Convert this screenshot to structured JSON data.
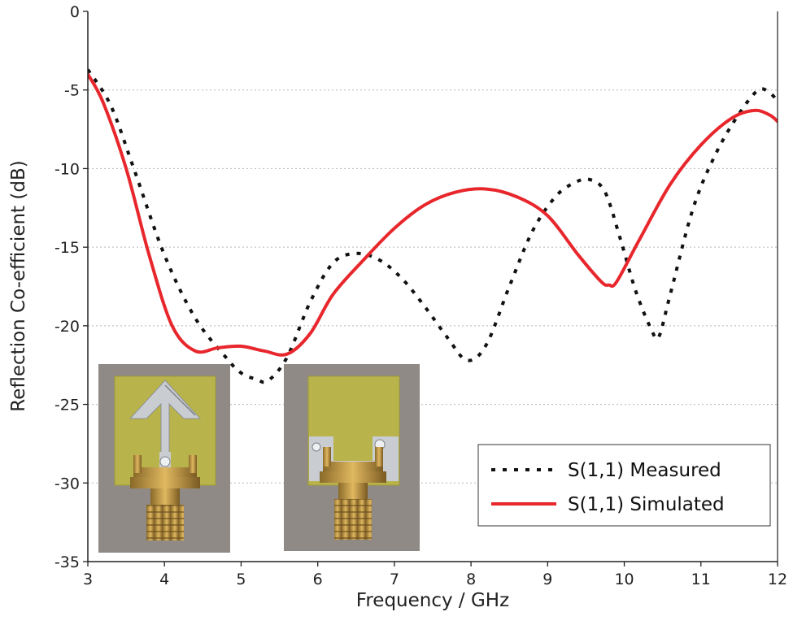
{
  "chart_data": {
    "type": "line",
    "title": "",
    "xlabel": "Frequency / GHz",
    "ylabel": "Reflection Co-efficient (dB)",
    "xlim": [
      3,
      12
    ],
    "ylim": [
      -35,
      0
    ],
    "xticks": [
      3,
      4,
      5,
      6,
      7,
      8,
      9,
      10,
      11,
      12
    ],
    "yticks": [
      0,
      -5,
      -10,
      -15,
      -20,
      -25,
      -30,
      -35
    ],
    "grid": "horizontal dotted",
    "legend_position": "bottom-right",
    "series": [
      {
        "name": "S(1,1) Measured",
        "style": "dotted",
        "color": "#111111",
        "x": [
          3.0,
          3.3,
          3.6,
          4.0,
          4.4,
          4.8,
          5.0,
          5.2,
          5.35,
          5.6,
          5.9,
          6.2,
          6.5,
          6.8,
          7.1,
          7.4,
          7.7,
          7.95,
          8.2,
          8.5,
          8.8,
          9.1,
          9.35,
          9.55,
          9.75,
          9.95,
          10.15,
          10.35,
          10.45,
          10.6,
          10.9,
          11.2,
          11.5,
          11.75,
          11.9,
          12.0
        ],
        "y": [
          -3.7,
          -6.0,
          -10.0,
          -15.5,
          -19.5,
          -22.0,
          -23.0,
          -23.4,
          -23.5,
          -22.0,
          -18.5,
          -16.0,
          -15.4,
          -15.8,
          -17.0,
          -18.8,
          -20.8,
          -22.2,
          -21.2,
          -17.5,
          -14.0,
          -11.8,
          -10.9,
          -10.7,
          -11.5,
          -14.5,
          -17.8,
          -20.2,
          -20.7,
          -18.0,
          -12.5,
          -9.0,
          -6.5,
          -5.0,
          -5.2,
          -5.7
        ]
      },
      {
        "name": "S(1,1) Simulated",
        "style": "solid",
        "color": "#e8272d",
        "x": [
          3.0,
          3.2,
          3.5,
          3.8,
          4.1,
          4.4,
          4.7,
          5.0,
          5.3,
          5.6,
          5.9,
          6.2,
          6.6,
          7.0,
          7.4,
          7.8,
          8.2,
          8.6,
          9.0,
          9.4,
          9.7,
          9.8,
          9.9,
          10.2,
          10.6,
          11.0,
          11.4,
          11.7,
          11.9,
          12.0
        ],
        "y": [
          -4.0,
          -5.8,
          -10.0,
          -15.5,
          -20.0,
          -21.6,
          -21.4,
          -21.3,
          -21.6,
          -21.8,
          -20.5,
          -18.0,
          -15.8,
          -13.8,
          -12.3,
          -11.5,
          -11.3,
          -11.8,
          -13.0,
          -15.5,
          -17.2,
          -17.4,
          -17.2,
          -14.5,
          -11.0,
          -8.5,
          -6.8,
          -6.3,
          -6.6,
          -7.0
        ]
      }
    ]
  },
  "insets": [
    {
      "name": "antenna-front-photo"
    },
    {
      "name": "antenna-back-photo"
    }
  ],
  "colors": {
    "measured": "#111111",
    "simulated": "#e8272d",
    "pcb": "#b8b34a",
    "copper": "#c7ccd0",
    "connector": "#c49a44",
    "photo_bg": "#8f8a85"
  }
}
